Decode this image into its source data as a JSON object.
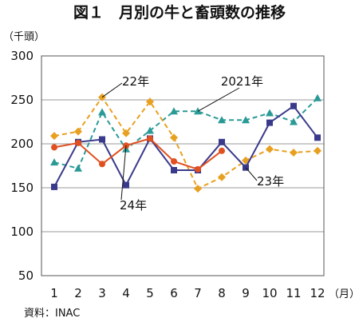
{
  "chart_data": {
    "type": "line",
    "title": "図１　月別の牛と畜頭数の推移",
    "ylabel": "（千頭）",
    "x_unit": "（月）",
    "source": "資料：INAC",
    "categories": [
      "1",
      "2",
      "3",
      "4",
      "5",
      "6",
      "7",
      "8",
      "9",
      "10",
      "11",
      "12"
    ],
    "ylim": [
      50,
      300
    ],
    "yticks": [
      50,
      100,
      150,
      200,
      250,
      300
    ],
    "grid": true,
    "series": [
      {
        "name": "2021年",
        "color": "#2a9a96",
        "style": "dashed",
        "marker": "triangle",
        "values": [
          179,
          172,
          236,
          194,
          215,
          237,
          237,
          227,
          227,
          235,
          225,
          252
        ]
      },
      {
        "name": "22年",
        "color": "#e8a020",
        "style": "dashed",
        "marker": "diamond",
        "values": [
          209,
          214,
          253,
          212,
          248,
          207,
          149,
          162,
          181,
          194,
          190,
          192
        ]
      },
      {
        "name": "23年",
        "color": "#3a3a8c",
        "style": "solid",
        "marker": "square",
        "values": [
          151,
          202,
          205,
          153,
          206,
          170,
          170,
          202,
          173,
          224,
          243,
          207
        ]
      },
      {
        "name": "24年",
        "color": "#e05020",
        "style": "solid",
        "marker": "circle",
        "values": [
          196,
          201,
          177,
          198,
          206,
          180,
          171,
          192,
          null,
          null,
          null,
          null
        ]
      }
    ]
  }
}
